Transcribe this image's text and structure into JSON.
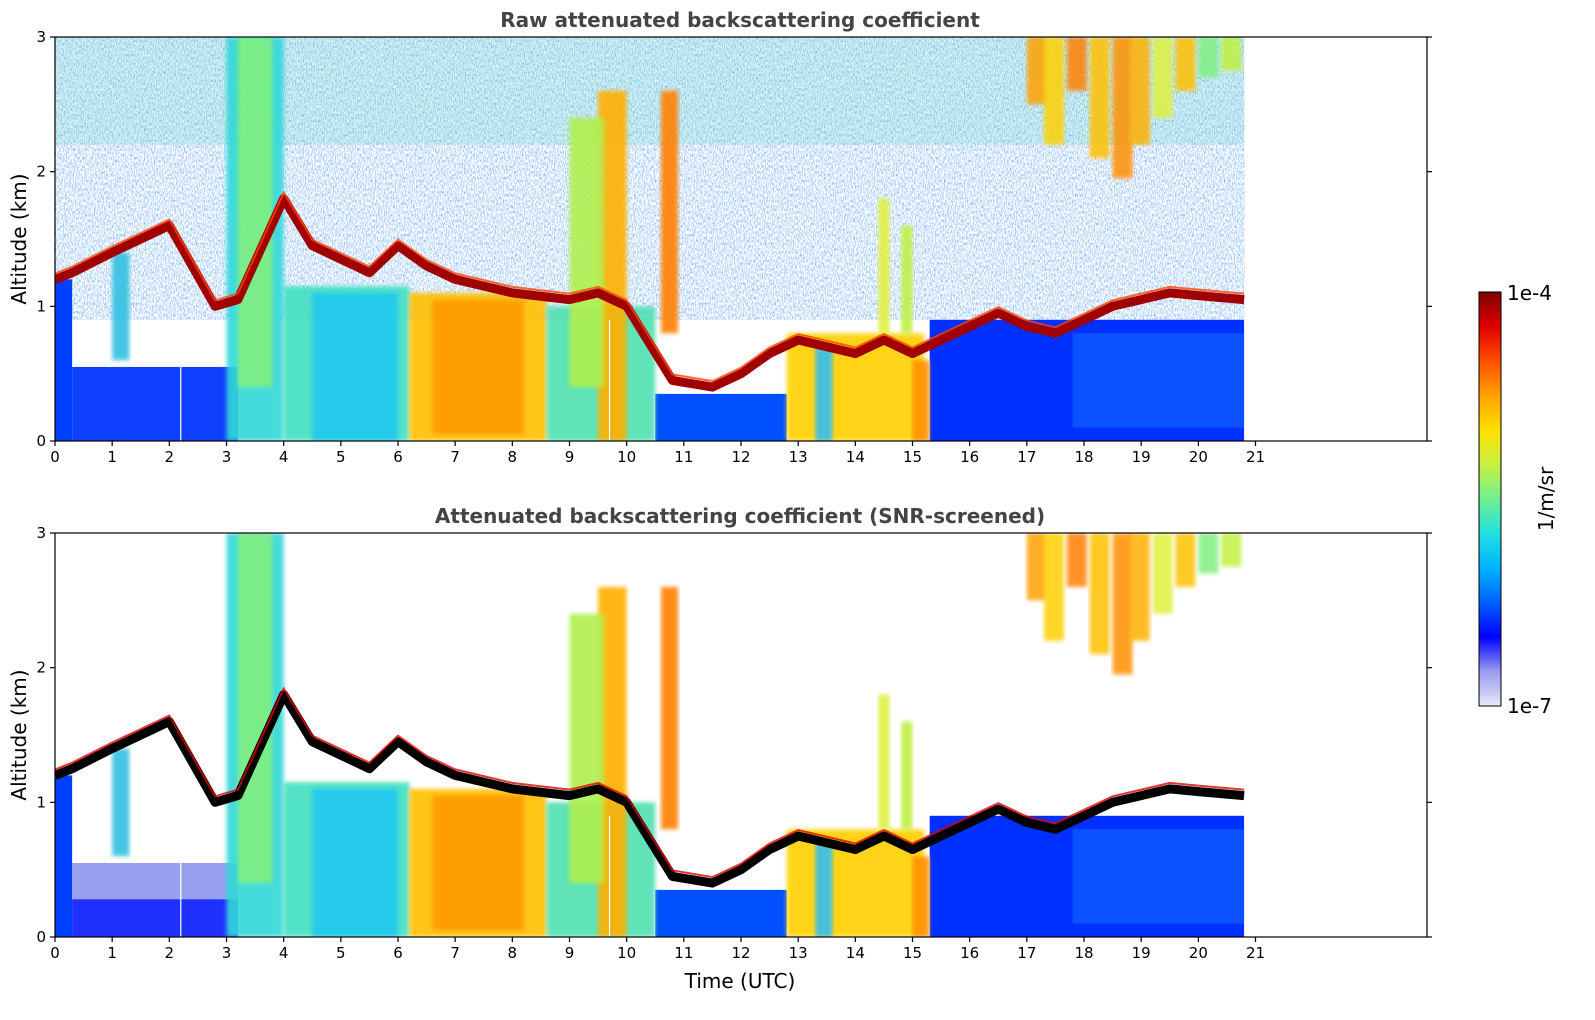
{
  "figure": {
    "colormap_colors": [
      "#e8e8f8",
      "#9a9af0",
      "#0000ff",
      "#0060ff",
      "#00b4ff",
      "#20e0e0",
      "#70f090",
      "#c8f040",
      "#ffe000",
      "#ffa000",
      "#ff5000",
      "#e00000",
      "#800000"
    ]
  },
  "colorbar": {
    "max_label": "1e-4",
    "min_label": "1e-7",
    "unit_label": "1/m/sr",
    "scale": "log",
    "range": [
      1e-07,
      0.0001
    ]
  },
  "chart_data": [
    {
      "type": "heatmap",
      "title": "Raw attenuated backscattering coefficient",
      "xlabel": "",
      "ylabel": "Altitude (km)",
      "xlim": [
        0,
        24
      ],
      "ylim": [
        0,
        3
      ],
      "x_ticks": [
        "0",
        "1",
        "2",
        "3",
        "4",
        "5",
        "6",
        "7",
        "8",
        "9",
        "10",
        "11",
        "12",
        "13",
        "14",
        "15",
        "16",
        "17",
        "18",
        "19",
        "20",
        "21"
      ],
      "y_ticks": [
        "0",
        "1",
        "2",
        "3"
      ],
      "data_extent_x": [
        0,
        20.8
      ],
      "layers": [
        {
          "name": "boundary-layer-top",
          "points": [
            [
              0,
              1.2
            ],
            [
              0.3,
              1.25
            ],
            [
              1,
              1.4
            ],
            [
              1.5,
              1.5
            ],
            [
              2,
              1.6
            ],
            [
              2.8,
              1.0
            ],
            [
              3.2,
              1.05
            ],
            [
              4,
              1.8
            ],
            [
              4.5,
              1.45
            ],
            [
              5,
              1.35
            ],
            [
              5.5,
              1.25
            ],
            [
              6,
              1.45
            ],
            [
              6.5,
              1.3
            ],
            [
              7,
              1.2
            ],
            [
              7.5,
              1.15
            ],
            [
              8,
              1.1
            ],
            [
              8.4,
              1.08
            ],
            [
              9,
              1.05
            ],
            [
              9.5,
              1.1
            ],
            [
              10,
              1.0
            ],
            [
              10.8,
              0.45
            ],
            [
              11.5,
              0.4
            ],
            [
              12,
              0.5
            ],
            [
              12.5,
              0.65
            ],
            [
              13,
              0.75
            ],
            [
              13.5,
              0.7
            ],
            [
              14,
              0.65
            ],
            [
              14.5,
              0.75
            ],
            [
              15,
              0.65
            ],
            [
              15.5,
              0.75
            ],
            [
              16,
              0.85
            ],
            [
              16.5,
              0.95
            ],
            [
              17,
              0.85
            ],
            [
              17.5,
              0.8
            ],
            [
              18,
              0.9
            ],
            [
              18.5,
              1.0
            ],
            [
              19,
              1.05
            ],
            [
              19.5,
              1.1
            ],
            [
              20,
              1.08
            ],
            [
              20.8,
              1.05
            ]
          ]
        }
      ],
      "cirrus_band": {
        "x_range": [
          16.8,
          20.8
        ],
        "y_range": [
          1.9,
          3.0
        ]
      }
    },
    {
      "type": "heatmap",
      "title": "Attenuated backscattering coefficient (SNR-screened)",
      "xlabel": "Time (UTC)",
      "ylabel": "Altitude (km)",
      "xlim": [
        0,
        24
      ],
      "ylim": [
        0,
        3
      ],
      "x_ticks": [
        "0",
        "1",
        "2",
        "3",
        "4",
        "5",
        "6",
        "7",
        "8",
        "9",
        "10",
        "11",
        "12",
        "13",
        "14",
        "15",
        "16",
        "17",
        "18",
        "19",
        "20",
        "21"
      ],
      "y_ticks": [
        "0",
        "1",
        "2",
        "3"
      ],
      "data_extent_x": [
        0,
        20.8
      ],
      "screened": true
    }
  ]
}
